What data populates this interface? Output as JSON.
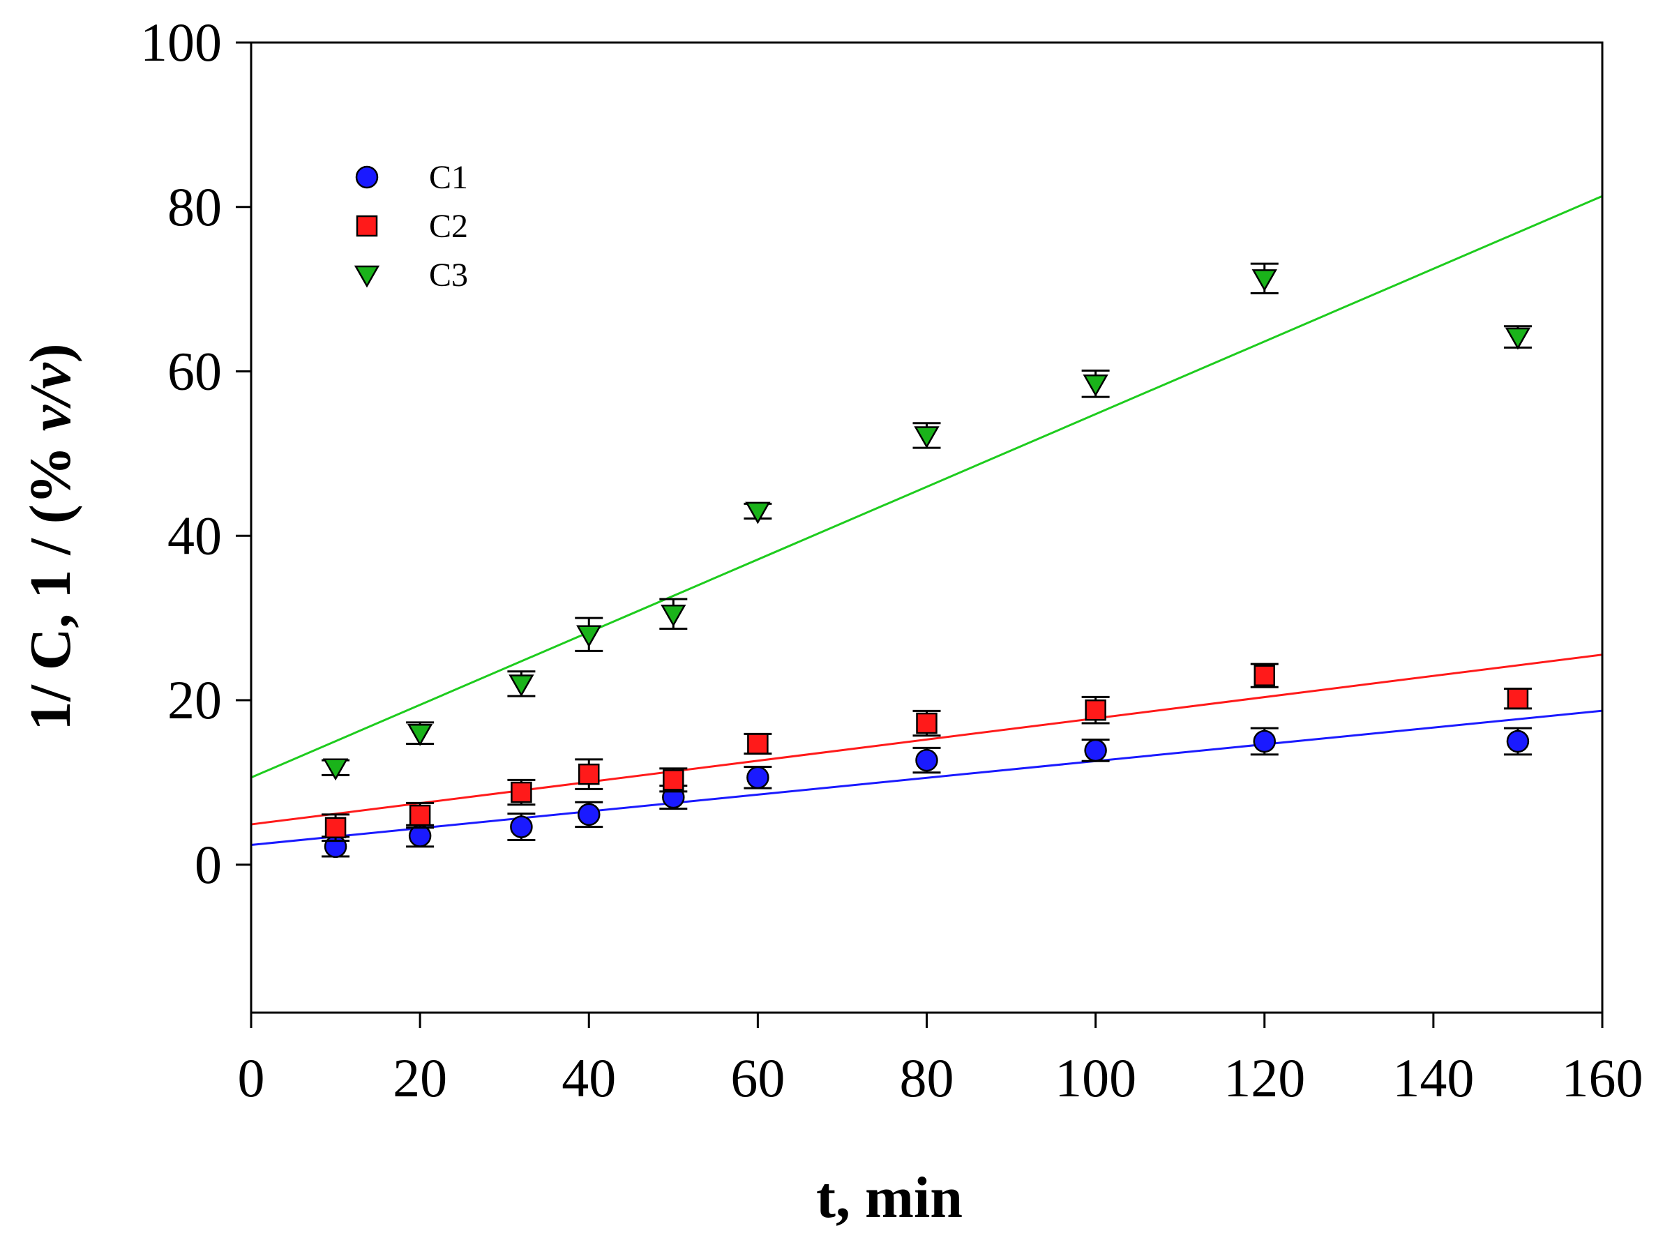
{
  "chart_data": {
    "type": "scatter",
    "title": "",
    "xlabel": "t, min",
    "ylabel_parts": [
      "1/ C, 1 / (% ",
      "v/v",
      ")"
    ],
    "xlim": [
      0,
      160
    ],
    "ylim": [
      -18,
      100
    ],
    "xticks": [
      0,
      20,
      40,
      60,
      80,
      100,
      120,
      140,
      160
    ],
    "yticks": [
      0,
      20,
      40,
      60,
      80,
      100
    ],
    "xtick_labels": [
      "0",
      "20",
      "40",
      "60",
      "80",
      "100",
      "120",
      "140",
      "160"
    ],
    "ytick_labels": [
      "0",
      "20",
      "40",
      "60",
      "80",
      "100"
    ],
    "grid": false,
    "legend_position": "top-left",
    "series": [
      {
        "name": "C1",
        "marker": "circle",
        "color": "#1a1aff",
        "line_color": "#1a1aff",
        "fit": {
          "intercept": 2.4,
          "slope": 0.102
        },
        "x": [
          10,
          20,
          32,
          40,
          50,
          60,
          80,
          100,
          120,
          150
        ],
        "y": [
          2.2,
          3.5,
          4.6,
          6.1,
          8.2,
          10.6,
          12.7,
          13.9,
          15.0,
          15.0
        ],
        "err": [
          1.2,
          1.3,
          1.6,
          1.5,
          1.4,
          1.3,
          1.5,
          1.3,
          1.6,
          1.6
        ]
      },
      {
        "name": "C2",
        "marker": "square",
        "color": "#ff1a1a",
        "line_color": "#ff1a1a",
        "fit": {
          "intercept": 4.9,
          "slope": 0.129
        },
        "x": [
          10,
          20,
          32,
          40,
          50,
          60,
          80,
          100,
          120,
          150
        ],
        "y": [
          4.5,
          6.0,
          8.8,
          11.0,
          10.3,
          14.7,
          17.2,
          18.8,
          23.0,
          20.2
        ],
        "err": [
          1.6,
          1.5,
          1.5,
          1.8,
          1.4,
          1.2,
          1.5,
          1.6,
          1.4,
          1.2
        ]
      },
      {
        "name": "C3",
        "marker": "triangle-down",
        "color": "#1ab31a",
        "line_color": "#1ecc1e",
        "fit": {
          "intercept": 10.6,
          "slope": 0.442
        },
        "x": [
          10,
          20,
          32,
          40,
          50,
          60,
          80,
          100,
          120,
          150
        ],
        "y": [
          11.8,
          16.0,
          22.0,
          28.0,
          30.5,
          43.0,
          52.2,
          58.5,
          71.3,
          64.2
        ],
        "err": [
          0.9,
          1.3,
          1.5,
          2.0,
          1.8,
          0.9,
          1.5,
          1.6,
          1.8,
          1.3
        ]
      }
    ]
  }
}
